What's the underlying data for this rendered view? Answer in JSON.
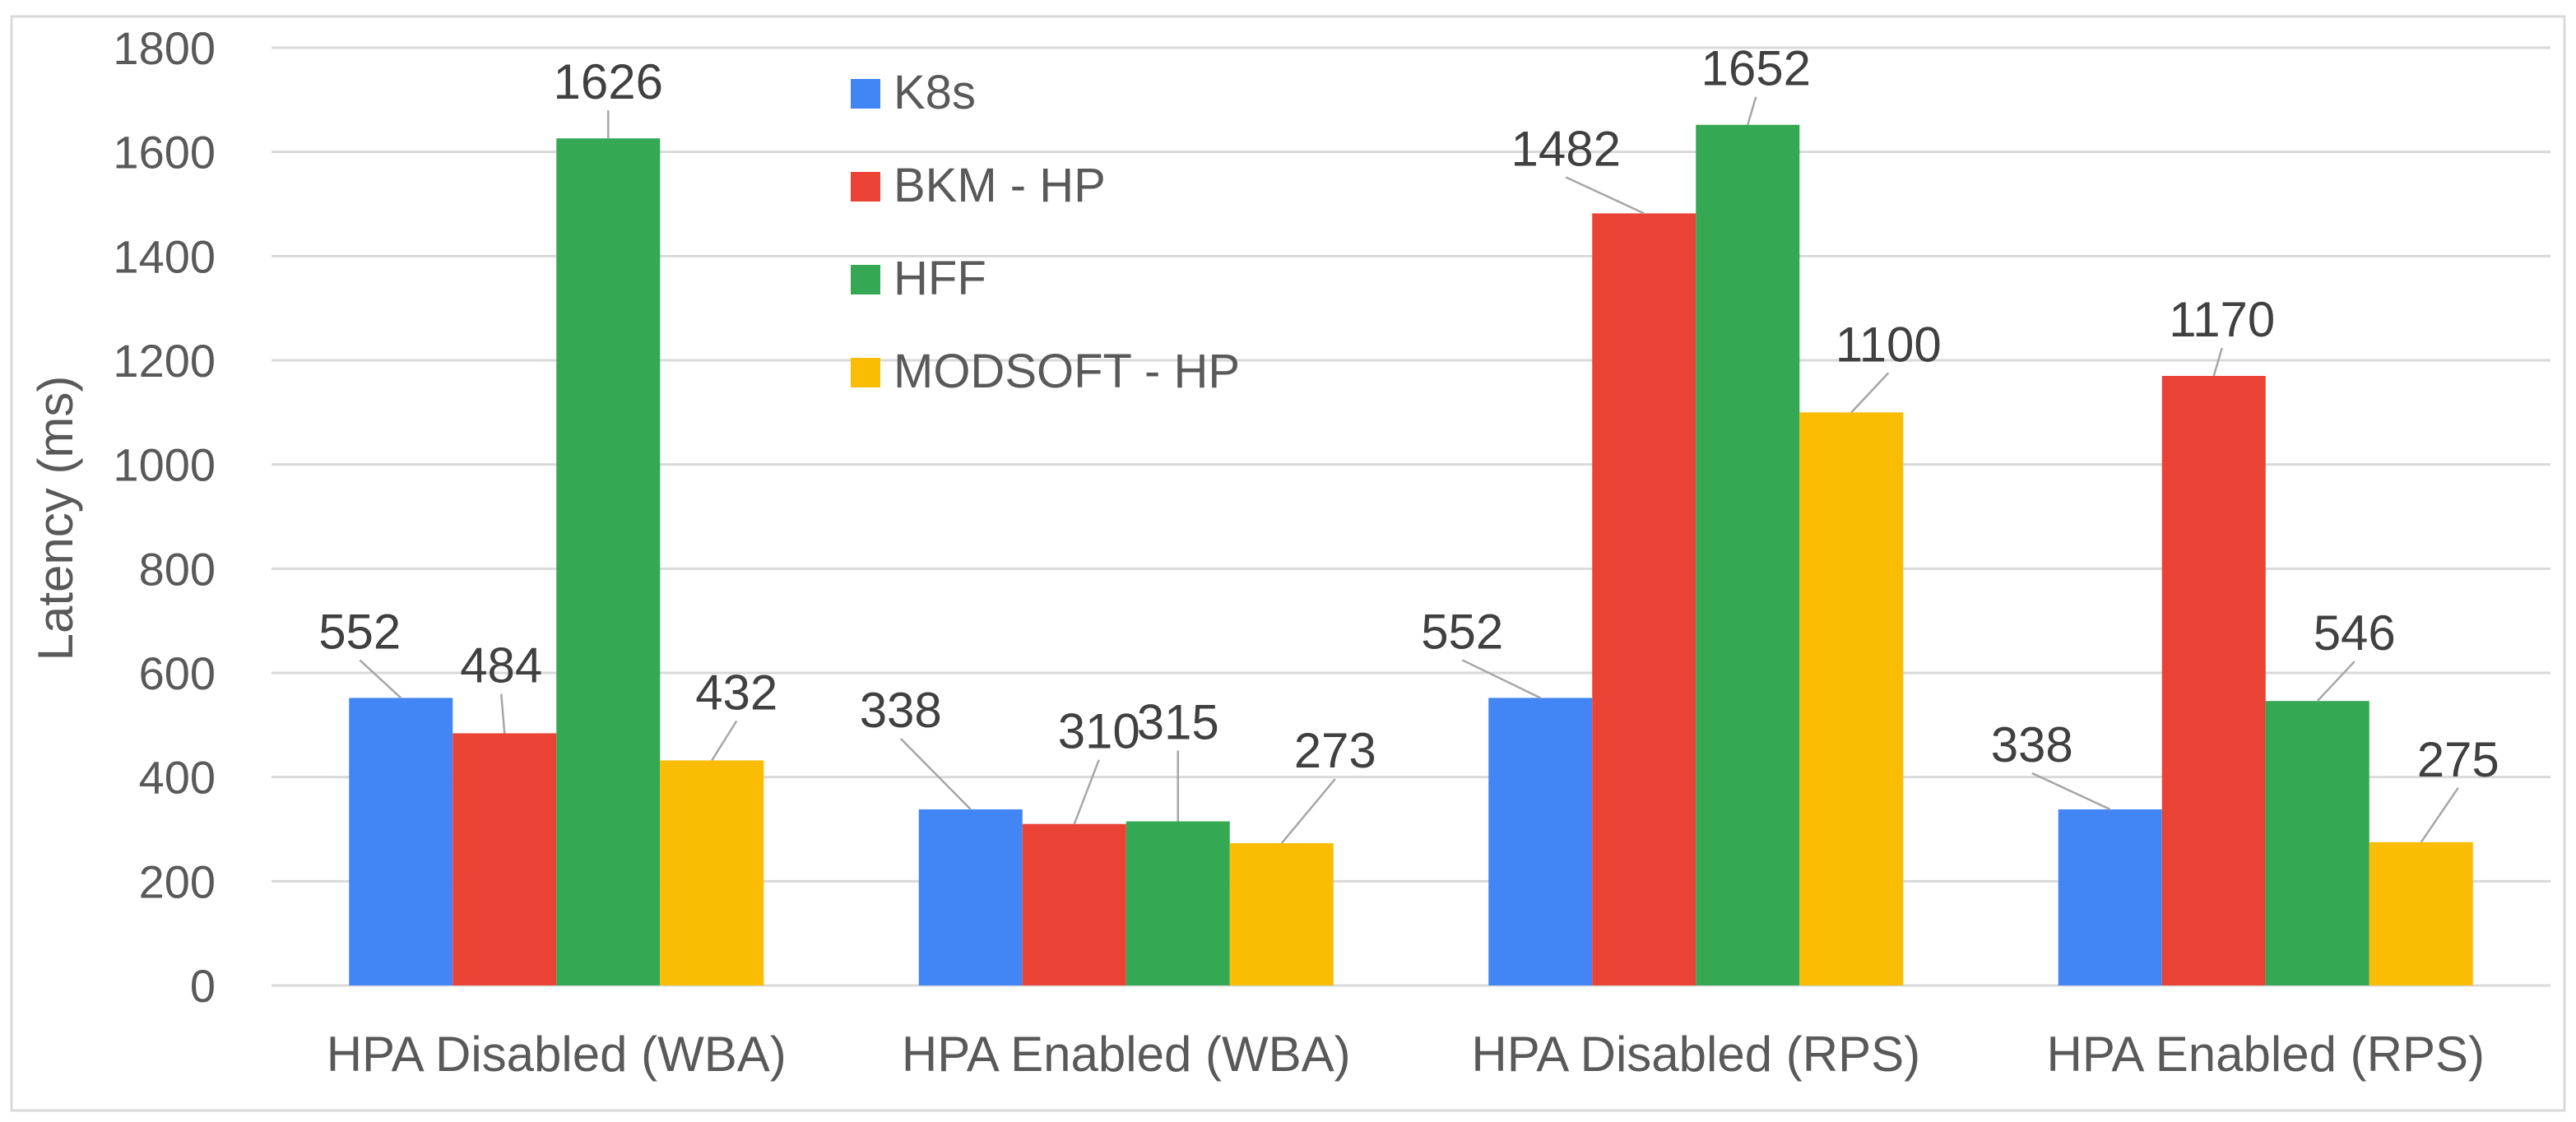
{
  "chart_data": {
    "type": "bar",
    "title": "",
    "xlabel": "",
    "ylabel": "Latency (ms)",
    "ylim": [
      0,
      1800
    ],
    "yticks": [
      0,
      200,
      400,
      600,
      800,
      1000,
      1200,
      1400,
      1600,
      1800
    ],
    "grid": true,
    "legend_position": "top-center",
    "categories": [
      "HPA Disabled (WBA)",
      "HPA Enabled (WBA)",
      "HPA Disabled (RPS)",
      "HPA Enabled (RPS)"
    ],
    "series": [
      {
        "name": "K8s",
        "color": "#4285F4",
        "values": [
          552,
          338,
          552,
          338
        ]
      },
      {
        "name": "BKM - HP",
        "color": "#EA4335",
        "values": [
          484,
          310,
          1482,
          1170
        ]
      },
      {
        "name": "HFF",
        "color": "#34A853",
        "values": [
          1626,
          315,
          1652,
          546
        ]
      },
      {
        "name": "MODSOFT - HP",
        "color": "#FBBC04",
        "values": [
          432,
          273,
          1100,
          275
        ]
      }
    ]
  }
}
